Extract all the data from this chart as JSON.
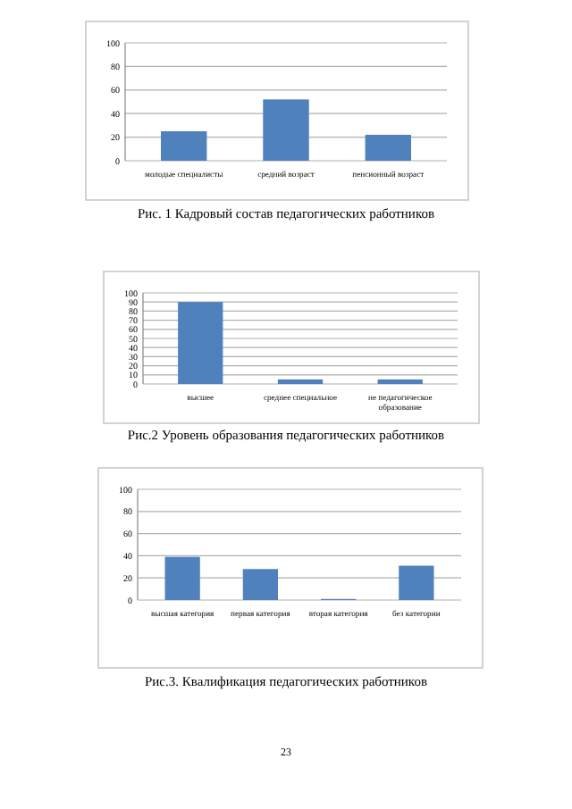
{
  "chart_data": [
    {
      "type": "bar",
      "title": "Рис. 1   Кадровый состав педагогических работников",
      "categories": [
        "молодые специалисты",
        "средний возраст",
        "пенсионный возраст"
      ],
      "values": [
        25,
        52,
        22
      ],
      "color": "#4f81bd",
      "ylim": [
        0,
        100
      ],
      "yticks": [
        0,
        20,
        40,
        60,
        80,
        100
      ],
      "grid": "y"
    },
    {
      "type": "bar",
      "title": "Рис.2     Уровень образования педагогических работников",
      "categories": [
        "высшее",
        "среднее специальное",
        "не педагогическое образование"
      ],
      "values": [
        90,
        5,
        5
      ],
      "color": "#4f81bd",
      "ylim": [
        0,
        100
      ],
      "yticks": [
        0,
        10,
        20,
        30,
        40,
        50,
        60,
        70,
        80,
        90,
        100
      ],
      "grid": "y"
    },
    {
      "type": "bar",
      "title": "Рис.3. Квалификация педагогических работников",
      "categories": [
        "высшая категория",
        "первая категория",
        "вторая категория",
        "без категории"
      ],
      "values": [
        39,
        28,
        1,
        31
      ],
      "color": "#4f81bd",
      "ylim": [
        0,
        100
      ],
      "yticks": [
        0,
        20,
        40,
        60,
        80,
        100
      ],
      "grid": "y",
      "annotations": [
        "23"
      ]
    }
  ]
}
